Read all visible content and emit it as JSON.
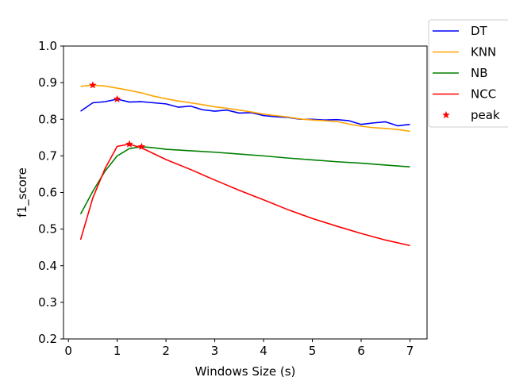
{
  "chart_data": {
    "type": "line",
    "xlabel": "Windows Size (s)",
    "ylabel": "f1_score",
    "xlim": [
      -0.1,
      7.35
    ],
    "ylim": [
      0.2,
      1.0
    ],
    "xticks": [
      0,
      1,
      2,
      3,
      4,
      5,
      6,
      7
    ],
    "yticks": [
      0.2,
      0.3,
      0.4,
      0.5,
      0.6,
      0.7,
      0.8,
      0.9,
      1.0
    ],
    "xtick_labels": [
      "0",
      "1",
      "2",
      "3",
      "4",
      "5",
      "6",
      "7"
    ],
    "ytick_labels": [
      "0.2",
      "0.3",
      "0.4",
      "0.5",
      "0.6",
      "0.7",
      "0.8",
      "0.9",
      "1.0"
    ],
    "grid": false,
    "legend_position": "outside-top-right",
    "series": [
      {
        "name": "DT",
        "color": "#0000ff",
        "x": [
          0.25,
          0.5,
          0.75,
          1.0,
          1.25,
          1.5,
          1.75,
          2.0,
          2.25,
          2.5,
          2.75,
          3.0,
          3.25,
          3.5,
          3.75,
          4.0,
          4.25,
          4.5,
          4.75,
          5.0,
          5.25,
          5.5,
          5.75,
          6.0,
          6.25,
          6.5,
          6.75,
          7.0
        ],
        "y": [
          0.822,
          0.845,
          0.848,
          0.855,
          0.847,
          0.848,
          0.845,
          0.842,
          0.833,
          0.836,
          0.826,
          0.822,
          0.825,
          0.817,
          0.818,
          0.81,
          0.807,
          0.805,
          0.8,
          0.8,
          0.798,
          0.799,
          0.796,
          0.786,
          0.79,
          0.793,
          0.782,
          0.786
        ]
      },
      {
        "name": "KNN",
        "color": "#ffa500",
        "x": [
          0.25,
          0.5,
          0.75,
          1.0,
          1.25,
          1.5,
          1.75,
          2.0,
          2.25,
          2.5,
          2.75,
          3.0,
          3.25,
          3.5,
          3.75,
          4.0,
          4.25,
          4.5,
          4.75,
          5.0,
          5.25,
          5.5,
          5.75,
          6.0,
          6.25,
          6.5,
          6.75,
          7.0
        ],
        "y": [
          0.89,
          0.893,
          0.891,
          0.885,
          0.879,
          0.872,
          0.863,
          0.856,
          0.85,
          0.845,
          0.84,
          0.834,
          0.83,
          0.825,
          0.82,
          0.814,
          0.81,
          0.806,
          0.801,
          0.798,
          0.796,
          0.794,
          0.787,
          0.781,
          0.777,
          0.775,
          0.772,
          0.767
        ]
      },
      {
        "name": "NB",
        "color": "#008000",
        "x": [
          0.25,
          0.5,
          0.75,
          1.0,
          1.25,
          1.5,
          1.75,
          2.0,
          2.5,
          3.0,
          3.5,
          4.0,
          4.5,
          5.0,
          5.5,
          6.0,
          6.5,
          7.0
        ],
        "y": [
          0.541,
          0.603,
          0.658,
          0.7,
          0.72,
          0.725,
          0.722,
          0.718,
          0.714,
          0.71,
          0.705,
          0.7,
          0.694,
          0.689,
          0.684,
          0.68,
          0.675,
          0.67
        ]
      },
      {
        "name": "NCC",
        "color": "#ff0000",
        "x": [
          0.25,
          0.5,
          0.75,
          1.0,
          1.25,
          1.5,
          1.75,
          2.0,
          2.5,
          3.0,
          3.5,
          4.0,
          4.5,
          5.0,
          5.5,
          6.0,
          6.5,
          7.0
        ],
        "y": [
          0.471,
          0.585,
          0.665,
          0.726,
          0.732,
          0.722,
          0.706,
          0.69,
          0.663,
          0.634,
          0.606,
          0.58,
          0.553,
          0.529,
          0.508,
          0.488,
          0.47,
          0.455
        ]
      }
    ],
    "peak": {
      "name": "peak",
      "color": "#ff0000",
      "marker": "star",
      "points": [
        {
          "x": 0.5,
          "y": 0.893
        },
        {
          "x": 1.0,
          "y": 0.855
        },
        {
          "x": 1.25,
          "y": 0.732
        },
        {
          "x": 1.5,
          "y": 0.725
        }
      ]
    }
  }
}
